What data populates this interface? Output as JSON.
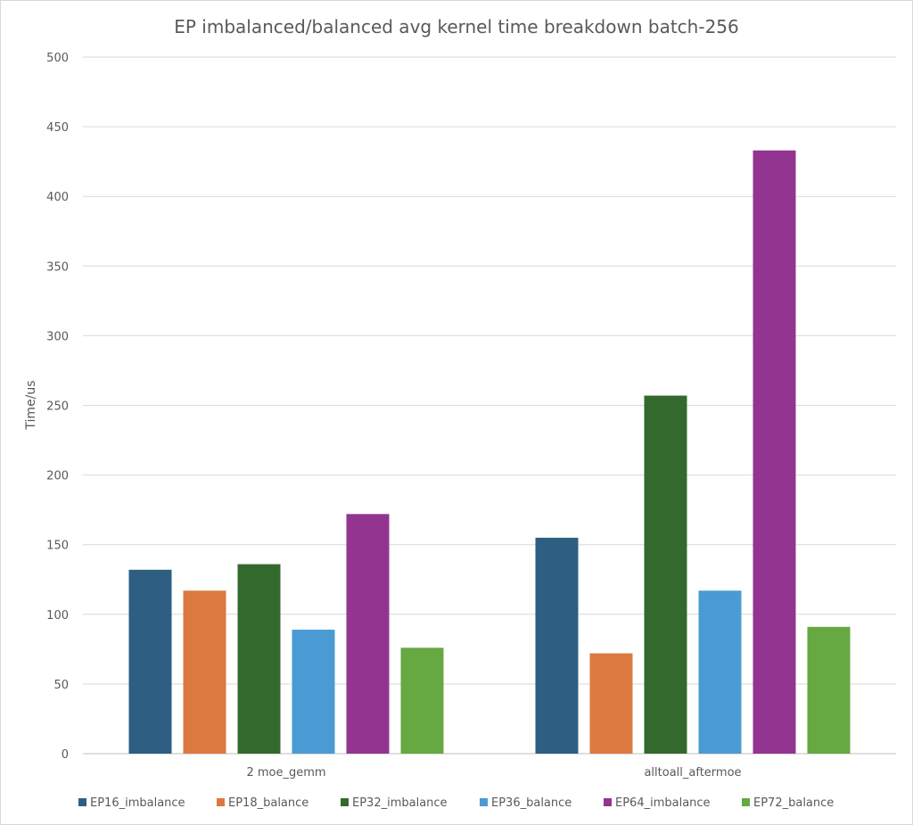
{
  "chart_data": {
    "type": "bar",
    "title": "EP imbalanced/balanced avg kernel time breakdown batch-256",
    "xlabel": "",
    "ylabel": "Time/us",
    "ylim": [
      0,
      500
    ],
    "yticks": [
      0,
      50,
      100,
      150,
      200,
      250,
      300,
      350,
      400,
      450,
      500
    ],
    "grid": true,
    "legend_position": "bottom",
    "categories": [
      "2 moe_gemm",
      "alltoall_aftermoe"
    ],
    "series": [
      {
        "name": "EP16_imbalance",
        "color": "#2e5f82",
        "values": [
          132,
          155
        ]
      },
      {
        "name": "EP18_balance",
        "color": "#db7a40",
        "values": [
          117,
          72
        ]
      },
      {
        "name": "EP32_imbalance",
        "color": "#34692d",
        "values": [
          136,
          257
        ]
      },
      {
        "name": "EP36_balance",
        "color": "#4a9bd4",
        "values": [
          89,
          117
        ]
      },
      {
        "name": "EP64_imbalance",
        "color": "#923490",
        "values": [
          172,
          433
        ]
      },
      {
        "name": "EP72_balance",
        "color": "#66a842",
        "values": [
          76,
          91
        ]
      }
    ]
  }
}
